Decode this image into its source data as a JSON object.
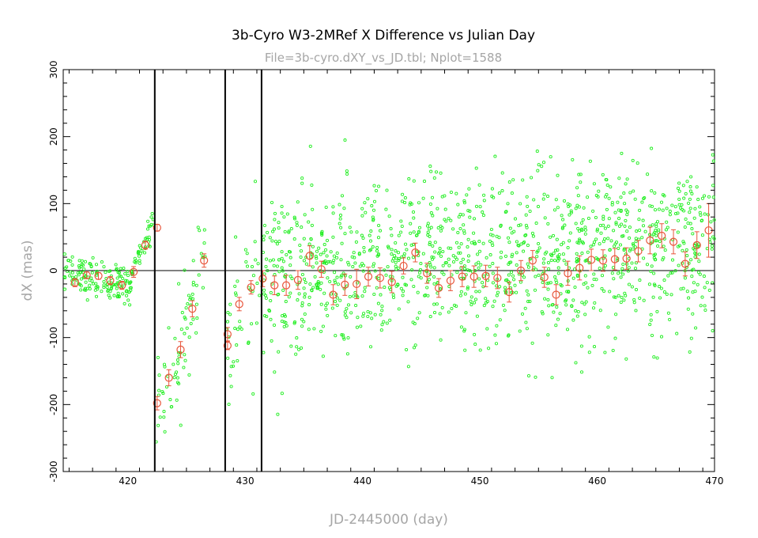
{
  "chart_data": {
    "type": "scatter",
    "title": "3b-Cyro W3-2MRef X Difference vs Julian Day",
    "subtitle": "File=3b-cyro.dXY_vs_JD.tbl; Nplot=1588",
    "xlabel": "JD-2445000 (day)",
    "ylabel": "dX (mas)",
    "xlim": [
      414.5,
      470
    ],
    "ylim": [
      -300,
      300
    ],
    "x_ticks": [
      420,
      430,
      440,
      450,
      460,
      470
    ],
    "y_ticks": [
      -300,
      -200,
      -100,
      0,
      100,
      200,
      300
    ],
    "x_tick_labels": [
      "420",
      "430",
      "440",
      "450",
      "460",
      "470"
    ],
    "y_tick_labels": [
      "-300",
      "-200",
      "-100",
      "0",
      "100",
      "200",
      "300"
    ],
    "grid": false,
    "zero_line": 0,
    "vertical_markers": [
      422.3,
      428.3,
      431.4
    ],
    "colors": {
      "points": "#22ee22",
      "means": "#e8553b",
      "axes": "#000000",
      "label": "#a6a6a6"
    },
    "series": [
      {
        "kind": "scatter-cloud",
        "segments": [
          {
            "x_from": 414.6,
            "x_to": 420.3,
            "mean_from": -5,
            "mean_to": -20,
            "spread": 14,
            "count": 150
          },
          {
            "x_from": 420.3,
            "x_to": 422.2,
            "mean_from": 0,
            "mean_to": 70,
            "spread": 10,
            "count": 40
          },
          {
            "x_from": 422.4,
            "x_to": 424.5,
            "mean_from": -195,
            "mean_to": -130,
            "spread": 40,
            "count": 35
          },
          {
            "x_from": 424.5,
            "x_to": 426.0,
            "mean_from": -110,
            "mean_to": -30,
            "spread": 35,
            "count": 30
          },
          {
            "x_from": 426.0,
            "x_to": 426.8,
            "mean_from": 10,
            "mean_to": 40,
            "spread": 20,
            "count": 10
          },
          {
            "x_from": 428.4,
            "x_to": 431.3,
            "mean_from": -110,
            "mean_to": -20,
            "spread": 60,
            "count": 45
          },
          {
            "x_from": 431.5,
            "x_to": 470.0,
            "mean_from": -10,
            "mean_to": 40,
            "spread": 62,
            "count": 1278
          }
        ]
      },
      {
        "kind": "binned-means",
        "x": [
          415.5,
          416.5,
          417.5,
          418.5,
          419.5,
          420.5,
          421.5,
          422.5,
          422.5,
          423.5,
          424.5,
          425.5,
          426.5,
          428.5,
          428.5,
          429.5,
          430.5,
          431.5,
          432.5,
          433.5,
          434.5,
          435.5,
          436.5,
          437.5,
          438.5,
          439.5,
          440.5,
          441.5,
          442.5,
          443.5,
          444.5,
          445.5,
          446.5,
          447.5,
          448.5,
          449.5,
          450.5,
          451.5,
          452.5,
          453.5,
          454.5,
          455.5,
          456.5,
          457.5,
          458.5,
          459.5,
          460.5,
          461.5,
          462.5,
          463.5,
          464.5,
          465.5,
          466.5,
          467.5,
          468.5,
          469.5
        ],
        "y": [
          -18,
          -7,
          -8,
          -15,
          -22,
          -2,
          38,
          64,
          -198,
          -160,
          -118,
          -57,
          15,
          -95,
          -112,
          -50,
          -25,
          -12,
          -22,
          -22,
          -14,
          22,
          2,
          -36,
          -21,
          -20,
          -9,
          -11,
          -17,
          7,
          27,
          -4,
          -26,
          -15,
          -9,
          -9,
          -8,
          -11,
          -32,
          0,
          15,
          -10,
          -36,
          -4,
          4,
          16,
          15,
          17,
          18,
          29,
          45,
          52,
          43,
          10,
          38,
          60
        ],
        "err": [
          6,
          5,
          5,
          6,
          6,
          8,
          6,
          5,
          10,
          12,
          12,
          12,
          10,
          10,
          6,
          10,
          10,
          12,
          14,
          15,
          14,
          15,
          12,
          15,
          16,
          22,
          14,
          15,
          16,
          12,
          14,
          15,
          14,
          15,
          15,
          16,
          16,
          16,
          15,
          15,
          15,
          15,
          15,
          18,
          18,
          16,
          16,
          16,
          16,
          16,
          20,
          18,
          18,
          18,
          20,
          40
        ]
      }
    ]
  }
}
